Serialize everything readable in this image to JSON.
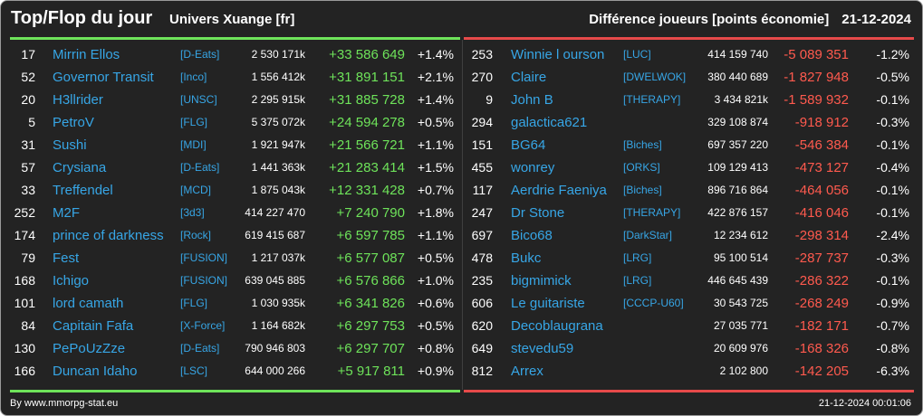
{
  "header": {
    "title": "Top/Flop du jour",
    "subtitle": "Univers Xuange [fr]",
    "metric": "Différence joueurs [points économie]",
    "date": "21-12-2024"
  },
  "colors": {
    "background": "#232323",
    "gain": "#6ee35a",
    "loss": "#ff5a4e",
    "link": "#37a6e6"
  },
  "top": [
    {
      "rank": "17",
      "name": "Mirrin Ellos",
      "alliance": "[D-Eats]",
      "points": "2 530 171k",
      "diff": "+33 586 649",
      "pct": "+1.4%"
    },
    {
      "rank": "52",
      "name": "Governor Transit",
      "alliance": "[Inco]",
      "points": "1 556 412k",
      "diff": "+31 891 151",
      "pct": "+2.1%"
    },
    {
      "rank": "20",
      "name": "H3llrider",
      "alliance": "[UNSC]",
      "points": "2 295 915k",
      "diff": "+31 885 728",
      "pct": "+1.4%"
    },
    {
      "rank": "5",
      "name": "PetroV",
      "alliance": "[FLG]",
      "points": "5 375 072k",
      "diff": "+24 594 278",
      "pct": "+0.5%"
    },
    {
      "rank": "31",
      "name": "Sushi",
      "alliance": "[MDI]",
      "points": "1 921 947k",
      "diff": "+21 566 721",
      "pct": "+1.1%"
    },
    {
      "rank": "57",
      "name": "Crysiana",
      "alliance": "[D-Eats]",
      "points": "1 441 363k",
      "diff": "+21 283 414",
      "pct": "+1.5%"
    },
    {
      "rank": "33",
      "name": "Treffendel",
      "alliance": "[MCD]",
      "points": "1 875 043k",
      "diff": "+12 331 428",
      "pct": "+0.7%"
    },
    {
      "rank": "252",
      "name": "M2F",
      "alliance": "[3d3]",
      "points": "414 227 470",
      "diff": "+7 240 790",
      "pct": "+1.8%"
    },
    {
      "rank": "174",
      "name": "prince of darkness",
      "alliance": "[Rock]",
      "points": "619 415 687",
      "diff": "+6 597 785",
      "pct": "+1.1%"
    },
    {
      "rank": "79",
      "name": "Fest",
      "alliance": "[FUSION]",
      "points": "1 217 037k",
      "diff": "+6 577 087",
      "pct": "+0.5%"
    },
    {
      "rank": "168",
      "name": "Ichigo",
      "alliance": "[FUSION]",
      "points": "639 045 885",
      "diff": "+6 576 866",
      "pct": "+1.0%"
    },
    {
      "rank": "101",
      "name": "lord camath",
      "alliance": "[FLG]",
      "points": "1 030 935k",
      "diff": "+6 341 826",
      "pct": "+0.6%"
    },
    {
      "rank": "84",
      "name": "Capitain Fafa",
      "alliance": "[X-Force]",
      "points": "1 164 682k",
      "diff": "+6 297 753",
      "pct": "+0.5%"
    },
    {
      "rank": "130",
      "name": "PePoUzZze",
      "alliance": "[D-Eats]",
      "points": "790 946 803",
      "diff": "+6 297 707",
      "pct": "+0.8%"
    },
    {
      "rank": "166",
      "name": "Duncan Idaho",
      "alliance": "[LSC]",
      "points": "644 000 266",
      "diff": "+5 917 811",
      "pct": "+0.9%"
    }
  ],
  "flop": [
    {
      "rank": "253",
      "name": "Winnie l ourson",
      "alliance": "[LUC]",
      "points": "414 159 740",
      "diff": "-5 089 351",
      "pct": "-1.2%"
    },
    {
      "rank": "270",
      "name": "Claire",
      "alliance": "[DWELWOK]",
      "points": "380 440 689",
      "diff": "-1 827 948",
      "pct": "-0.5%"
    },
    {
      "rank": "9",
      "name": "John B",
      "alliance": "[THERAPY]",
      "points": "3 434 821k",
      "diff": "-1 589 932",
      "pct": "-0.1%"
    },
    {
      "rank": "294",
      "name": "galactica621",
      "alliance": "",
      "points": "329 108 874",
      "diff": "-918 912",
      "pct": "-0.3%"
    },
    {
      "rank": "151",
      "name": "BG64",
      "alliance": "[Biches]",
      "points": "697 357 220",
      "diff": "-546 384",
      "pct": "-0.1%"
    },
    {
      "rank": "455",
      "name": "wonrey",
      "alliance": "[ORKS]",
      "points": "109 129 413",
      "diff": "-473 127",
      "pct": "-0.4%"
    },
    {
      "rank": "117",
      "name": "Aerdrie Faeniya",
      "alliance": "[Biches]",
      "points": "896 716 864",
      "diff": "-464 056",
      "pct": "-0.1%"
    },
    {
      "rank": "247",
      "name": "Dr Stone",
      "alliance": "[THERAPY]",
      "points": "422 876 157",
      "diff": "-416 046",
      "pct": "-0.1%"
    },
    {
      "rank": "697",
      "name": "Bico68",
      "alliance": "[DarkStar]",
      "points": "12 234 612",
      "diff": "-298 314",
      "pct": "-2.4%"
    },
    {
      "rank": "478",
      "name": "Bukc",
      "alliance": "[LRG]",
      "points": "95 100 514",
      "diff": "-287 737",
      "pct": "-0.3%"
    },
    {
      "rank": "235",
      "name": "bigmimick",
      "alliance": "[LRG]",
      "points": "446 645 439",
      "diff": "-286 322",
      "pct": "-0.1%"
    },
    {
      "rank": "606",
      "name": "Le guitariste",
      "alliance": "[CCCP-U60]",
      "points": "30 543 725",
      "diff": "-268 249",
      "pct": "-0.9%"
    },
    {
      "rank": "620",
      "name": "Decoblaugrana",
      "alliance": "",
      "points": "27 035 771",
      "diff": "-182 171",
      "pct": "-0.7%"
    },
    {
      "rank": "649",
      "name": "stevedu59",
      "alliance": "",
      "points": "20 609 976",
      "diff": "-168 326",
      "pct": "-0.8%"
    },
    {
      "rank": "812",
      "name": "Arrex",
      "alliance": "",
      "points": "2 102 800",
      "diff": "-142 205",
      "pct": "-6.3%"
    }
  ],
  "footer": {
    "source": "By www.mmorpg-stat.eu",
    "timestamp": "21-12-2024 00:01:06"
  }
}
